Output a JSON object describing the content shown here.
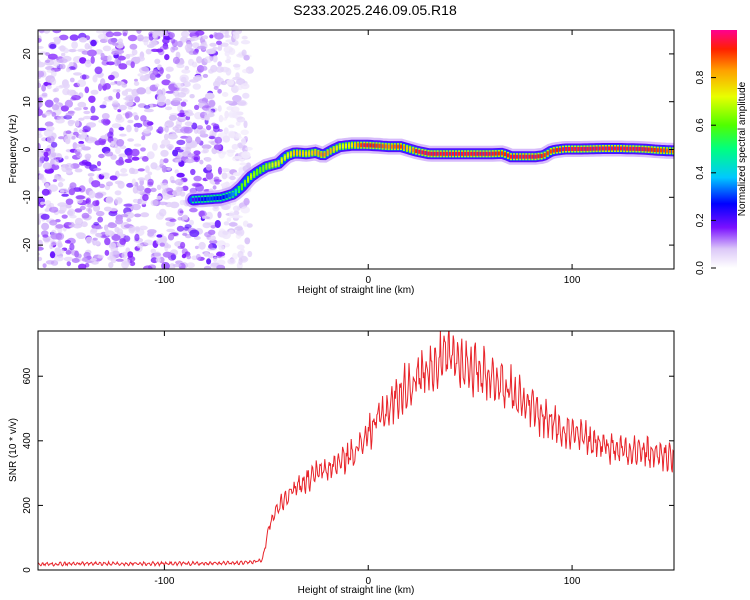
{
  "title": "S233.2025.246.09.05.R18",
  "colors": {
    "signal_line": "#e8242a",
    "axis": "#000000",
    "background": "#ffffff"
  },
  "chart_data": [
    {
      "type": "heatmap",
      "xlabel": "Height of straight line (km)",
      "ylabel": "Frequency (Hz)",
      "xlim": [
        -162,
        150
      ],
      "ylim": [
        -25,
        25
      ],
      "xticks": [
        -100,
        0,
        100
      ],
      "yticks": [
        -20,
        -10,
        0,
        10,
        20
      ],
      "colorbar": {
        "label": "Normalized spectral amplitude",
        "range": [
          0,
          1
        ],
        "ticks": [
          "0.0",
          "0.2",
          "0.4",
          "0.6",
          "0.8"
        ],
        "tick_values": [
          0.0,
          0.2,
          0.4,
          0.6,
          0.8
        ]
      },
      "noise_region_x": [
        -162,
        -60
      ],
      "ridge": {
        "x": [
          -86,
          -78,
          -72,
          -66,
          -62,
          -58,
          -54,
          -50,
          -44,
          -40,
          -36,
          -30,
          -26,
          -22,
          -18,
          -14,
          -8,
          -2,
          4,
          10,
          16,
          20,
          24,
          30,
          40,
          50,
          60,
          66,
          70,
          76,
          82,
          86,
          90,
          96,
          104,
          114,
          124,
          134,
          144,
          150
        ],
        "freq_hz": [
          -10.5,
          -10.3,
          -10.1,
          -9.3,
          -7.8,
          -5.8,
          -4.6,
          -3.6,
          -2.9,
          -1.3,
          -0.7,
          -0.9,
          -0.6,
          -1.2,
          -0.2,
          0.6,
          0.9,
          0.9,
          0.8,
          0.6,
          0.6,
          0.1,
          -0.4,
          -0.9,
          -0.9,
          -0.9,
          -0.9,
          -0.8,
          -1.5,
          -1.5,
          -1.5,
          -1.3,
          -0.3,
          0.1,
          0.1,
          0.2,
          0.2,
          0.1,
          -0.2,
          -0.3
        ],
        "amplitude": [
          0.2,
          0.3,
          0.25,
          0.35,
          0.6,
          0.7,
          0.6,
          0.65,
          0.75,
          0.7,
          0.8,
          0.75,
          0.8,
          0.85,
          0.8,
          0.7,
          0.75,
          0.95,
          0.9,
          0.85,
          0.9,
          0.75,
          0.95,
          0.95,
          0.95,
          0.95,
          0.95,
          0.9,
          0.95,
          0.95,
          0.95,
          0.9,
          0.9,
          0.95,
          0.95,
          0.95,
          0.95,
          0.95,
          0.9,
          0.85
        ]
      }
    },
    {
      "type": "line",
      "xlabel": "Height of straight line (km)",
      "ylabel": "SNR (10 * v/v)",
      "xlim": [
        -162,
        150
      ],
      "ylim": [
        0,
        740
      ],
      "xticks": [
        -100,
        0,
        100
      ],
      "yticks": [
        0,
        200,
        400,
        600
      ],
      "series": [
        {
          "name": "SNR",
          "x": [
            -162,
            -140,
            -120,
            -100,
            -80,
            -60,
            -52,
            -48,
            -44,
            -40,
            -35,
            -30,
            -25,
            -20,
            -15,
            -10,
            -5,
            0,
            5,
            10,
            15,
            20,
            25,
            30,
            35,
            40,
            45,
            50,
            55,
            60,
            65,
            70,
            75,
            80,
            85,
            90,
            95,
            100,
            105,
            110,
            115,
            120,
            125,
            130,
            135,
            140,
            145,
            150
          ],
          "y": [
            18,
            20,
            19,
            20,
            20,
            22,
            30,
            150,
            200,
            230,
            260,
            280,
            300,
            310,
            330,
            350,
            380,
            420,
            470,
            500,
            540,
            570,
            600,
            630,
            650,
            660,
            645,
            630,
            620,
            600,
            580,
            560,
            530,
            500,
            480,
            460,
            440,
            420,
            410,
            400,
            390,
            380,
            375,
            370,
            365,
            360,
            355,
            345
          ]
        }
      ]
    }
  ]
}
